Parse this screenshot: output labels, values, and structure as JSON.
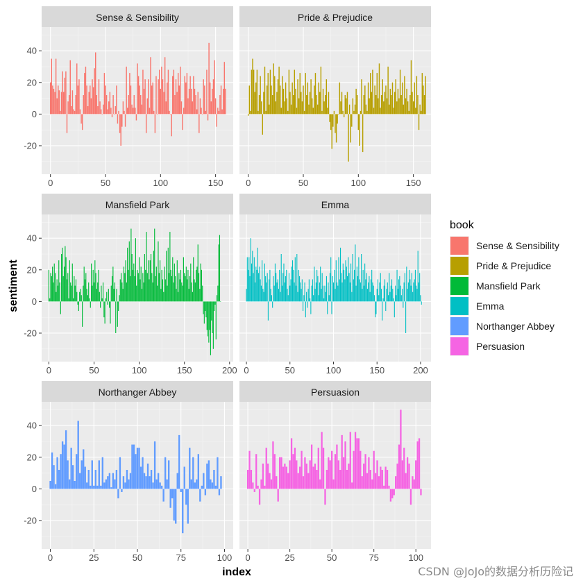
{
  "watermark": "CSDN @JoJo的数据分析历险记",
  "chart_data": {
    "type": "bar",
    "facet_layout": "3 rows x 2 columns, y axis shared, x axis free",
    "xlabel": "index",
    "ylabel": "sentiment",
    "ylim": [
      -38,
      55
    ],
    "yticks": [
      -20,
      0,
      20,
      40
    ],
    "grid": true,
    "legend": {
      "title": "book",
      "position": "right",
      "entries": [
        "Sense & Sensibility",
        "Pride & Prejudice",
        "Mansfield Park",
        "Emma",
        "Northanger Abbey",
        "Persuasion"
      ]
    },
    "facets": [
      {
        "title": "Sense & Sensibility",
        "color": "#F8766D",
        "xlim": [
          -8,
          166
        ],
        "xticks": [
          "0",
          "50",
          "100",
          "150"
        ],
        "xtick_values": [
          0,
          50,
          100,
          150
        ],
        "values": [
          20,
          35,
          18,
          16,
          14,
          35,
          10,
          18,
          15,
          2,
          14,
          27,
          14,
          23,
          27,
          -12,
          8,
          12,
          34,
          5,
          15,
          3,
          2,
          12,
          32,
          18,
          22,
          3,
          -6,
          -10,
          12,
          26,
          30,
          18,
          5,
          14,
          18,
          10,
          22,
          17,
          29,
          39,
          12,
          5,
          22,
          8,
          3,
          0,
          6,
          26,
          18,
          12,
          3,
          8,
          14,
          4,
          -2,
          12,
          0,
          5,
          18,
          -6,
          2,
          -12,
          -20,
          -8,
          8,
          2,
          -8,
          30,
          4,
          12,
          26,
          18,
          6,
          4,
          12,
          4,
          -4,
          32,
          24,
          18,
          12,
          6,
          28,
          16,
          22,
          -12,
          10,
          22,
          4,
          36,
          18,
          20,
          2,
          -12,
          24,
          0,
          22,
          28,
          16,
          30,
          22,
          14,
          36,
          8,
          20,
          28,
          2,
          0,
          -14,
          24,
          28,
          12,
          22,
          14,
          26,
          18,
          30,
          8,
          -10,
          4,
          24,
          20,
          26,
          10,
          16,
          24,
          16,
          8,
          24,
          16,
          12,
          3,
          14,
          -12,
          10,
          4,
          0,
          22,
          18,
          2,
          28,
          -4,
          45,
          20,
          8,
          16,
          22,
          34,
          10,
          -8,
          4,
          2,
          12,
          18,
          3,
          16,
          33,
          16
        ],
        "bar_label": "sense-sensibility"
      },
      {
        "title": "Pride & Prejudice",
        "color": "#B79F00",
        "xlim": [
          -8,
          166
        ],
        "xticks": [
          "0",
          "50",
          "100",
          "150"
        ],
        "xtick_values": [
          0,
          50,
          100,
          150
        ],
        "values": [
          -1,
          18,
          2,
          28,
          35,
          28,
          14,
          20,
          28,
          2,
          12,
          24,
          8,
          -13,
          14,
          30,
          2,
          18,
          26,
          6,
          28,
          18,
          12,
          32,
          24,
          8,
          14,
          22,
          30,
          18,
          4,
          24,
          16,
          8,
          20,
          10,
          2,
          28,
          14,
          6,
          20,
          12,
          28,
          16,
          4,
          22,
          10,
          26,
          14,
          8,
          18,
          2,
          26,
          12,
          20,
          6,
          14,
          22,
          10,
          4,
          18,
          26,
          12,
          6,
          20,
          14,
          30,
          2,
          16,
          8,
          12,
          22,
          4,
          14,
          -5,
          -10,
          -22,
          -8,
          2,
          -12,
          -18,
          -6,
          0,
          20,
          8,
          14,
          2,
          -2,
          12,
          10,
          14,
          -30,
          6,
          -18,
          -8,
          10,
          2,
          6,
          16,
          12,
          -10,
          -20,
          2,
          22,
          -24,
          12,
          18,
          6,
          2,
          20,
          10,
          26,
          14,
          28,
          4,
          18,
          12,
          26,
          10,
          32,
          4,
          12,
          22,
          8,
          14,
          18,
          10,
          30,
          6,
          16,
          12,
          20,
          4,
          14,
          22,
          8,
          16,
          10,
          28,
          12,
          20,
          6,
          24,
          10,
          16,
          8,
          2,
          12,
          34,
          14,
          8,
          20,
          4,
          24,
          12,
          -10,
          6,
          2,
          26,
          18,
          12,
          24
        ],
        "bar_label": "pride-prejudice"
      },
      {
        "title": "Mansfield Park",
        "color": "#00BA38",
        "xlim": [
          -8,
          204
        ],
        "xticks": [
          "0",
          "50",
          "100",
          "150",
          "200"
        ],
        "xtick_values": [
          0,
          50,
          100,
          150,
          200
        ],
        "values": [
          20,
          2,
          18,
          16,
          22,
          12,
          24,
          18,
          6,
          14,
          10,
          26,
          12,
          -8,
          30,
          34,
          16,
          22,
          35,
          28,
          14,
          18,
          2,
          26,
          12,
          10,
          24,
          2,
          16,
          10,
          14,
          6,
          -2,
          -6,
          6,
          8,
          4,
          -16,
          10,
          22,
          14,
          18,
          8,
          4,
          12,
          2,
          -4,
          24,
          10,
          20,
          12,
          26,
          18,
          8,
          12,
          20,
          6,
          -4,
          10,
          2,
          12,
          -10,
          -14,
          2,
          6,
          -2,
          8,
          -4,
          -14,
          10,
          16,
          22,
          8,
          12,
          -20,
          8,
          -16,
          -6,
          4,
          14,
          18,
          12,
          8,
          22,
          18,
          26,
          12,
          34,
          20,
          38,
          16,
          46,
          30,
          20,
          24,
          16,
          40,
          10,
          20,
          18,
          28,
          14,
          22,
          8,
          18,
          12,
          30,
          20,
          44,
          18,
          26,
          14,
          26,
          30,
          18,
          12,
          32,
          46,
          16,
          22,
          10,
          38,
          18,
          26,
          8,
          20,
          14,
          6,
          22,
          14,
          32,
          10,
          34,
          18,
          44,
          20,
          16,
          28,
          12,
          24,
          16,
          8,
          26,
          6,
          18,
          14,
          20,
          12,
          10,
          28,
          18,
          16,
          22,
          14,
          20,
          8,
          16,
          24,
          12,
          6,
          28,
          14,
          12,
          20,
          22,
          36,
          18,
          8,
          24,
          20,
          10,
          -8,
          -14,
          -6,
          -10,
          -18,
          -22,
          -26,
          -18,
          -34,
          -12,
          -20,
          -30,
          -6,
          -2,
          -24,
          4,
          10,
          36,
          42,
          0
        ],
        "bar_label": "mansfield-park"
      },
      {
        "title": "Emma",
        "color": "#00BFC4",
        "xlim": [
          -8,
          212
        ],
        "xticks": [
          "0",
          "50",
          "100",
          "150",
          "200"
        ],
        "xtick_values": [
          0,
          50,
          100,
          150,
          200
        ],
        "values": [
          8,
          28,
          20,
          28,
          16,
          40,
          24,
          32,
          18,
          28,
          12,
          22,
          20,
          34,
          18,
          22,
          14,
          10,
          26,
          8,
          6,
          24,
          16,
          12,
          18,
          -12,
          14,
          20,
          8,
          4,
          -4,
          16,
          10,
          24,
          18,
          12,
          14,
          8,
          20,
          6,
          30,
          10,
          18,
          24,
          12,
          16,
          20,
          8,
          4,
          18,
          10,
          14,
          22,
          26,
          20,
          12,
          28,
          10,
          30,
          6,
          20,
          16,
          12,
          8,
          14,
          -6,
          4,
          12,
          -10,
          6,
          -4,
          8,
          14,
          2,
          -8,
          10,
          14,
          4,
          22,
          8,
          12,
          20,
          16,
          4,
          12,
          22,
          8,
          18,
          10,
          2,
          10,
          6,
          16,
          -8,
          12,
          4,
          18,
          28,
          -8,
          16,
          12,
          20,
          8,
          26,
          12,
          10,
          28,
          14,
          34,
          18,
          12,
          24,
          20,
          14,
          26,
          22,
          16,
          28,
          18,
          12,
          24,
          6,
          30,
          14,
          20,
          36,
          10,
          22,
          16,
          28,
          14,
          12,
          30,
          8,
          20,
          10,
          24,
          14,
          18,
          8,
          12,
          16,
          6,
          14,
          20,
          12,
          10,
          4,
          -10,
          -8,
          8,
          14,
          4,
          12,
          18,
          8,
          -12,
          2,
          10,
          14,
          -6,
          8,
          12,
          4,
          18,
          6,
          10,
          14,
          8,
          2,
          -10,
          10,
          4,
          20,
          8,
          14,
          16,
          10,
          4,
          8,
          -4,
          12,
          18,
          -20,
          22,
          8,
          12,
          20,
          14,
          10,
          18,
          6,
          12,
          14,
          20,
          10,
          8,
          32,
          12,
          18,
          4,
          -2
        ],
        "bar_label": "emma"
      },
      {
        "title": "Northanger Abbey",
        "color": "#619CFF",
        "xlim": [
          -5,
          105
        ],
        "xticks": [
          "0",
          "25",
          "50",
          "75",
          "100"
        ],
        "xtick_values": [
          0,
          25,
          50,
          75,
          100
        ],
        "values": [
          5,
          23,
          15,
          3,
          20,
          12,
          22,
          30,
          28,
          37,
          18,
          6,
          26,
          15,
          5,
          22,
          43,
          10,
          18,
          25,
          14,
          4,
          12,
          2,
          18,
          2,
          12,
          2,
          18,
          2,
          20,
          4,
          6,
          8,
          10,
          1,
          10,
          6,
          12,
          -6,
          20,
          -2,
          8,
          4,
          12,
          6,
          10,
          28,
          28,
          22,
          26,
          26,
          14,
          20,
          10,
          8,
          16,
          8,
          12,
          4,
          30,
          6,
          10,
          4,
          2,
          -8,
          20,
          6,
          18,
          -12,
          -6,
          -20,
          -22,
          10,
          34,
          -2,
          -28,
          14,
          -10,
          -22,
          26,
          6,
          20,
          4,
          6,
          22,
          -8,
          2,
          10,
          -4,
          16,
          18,
          6,
          4,
          12,
          2,
          20,
          -4,
          8
        ]
      },
      {
        "title": "Persuasion",
        "color": "#F564E3",
        "xlim": [
          -5,
          109
        ],
        "xticks": [
          "0",
          "25",
          "50",
          "75",
          "100"
        ],
        "xtick_values": [
          0,
          25,
          50,
          75,
          100
        ],
        "values": [
          12,
          24,
          12,
          4,
          -2,
          22,
          2,
          -10,
          6,
          16,
          2,
          26,
          16,
          10,
          6,
          30,
          22,
          8,
          -8,
          20,
          20,
          14,
          16,
          14,
          10,
          18,
          32,
          22,
          26,
          18,
          10,
          14,
          24,
          8,
          20,
          16,
          10,
          18,
          28,
          14,
          16,
          12,
          26,
          6,
          36,
          26,
          -10,
          12,
          20,
          18,
          24,
          6,
          22,
          28,
          18,
          12,
          34,
          20,
          30,
          12,
          16,
          36,
          4,
          24,
          36,
          32,
          32,
          24,
          8,
          16,
          22,
          10,
          20,
          12,
          6,
          24,
          10,
          18,
          8,
          14,
          12,
          2,
          14,
          12,
          2,
          -8,
          -6,
          -4,
          8,
          16,
          28,
          50,
          18,
          26,
          10,
          20,
          16,
          -10,
          8,
          6,
          18,
          30,
          32,
          -4
        ],
        "bar_label": "persuasion"
      }
    ]
  }
}
